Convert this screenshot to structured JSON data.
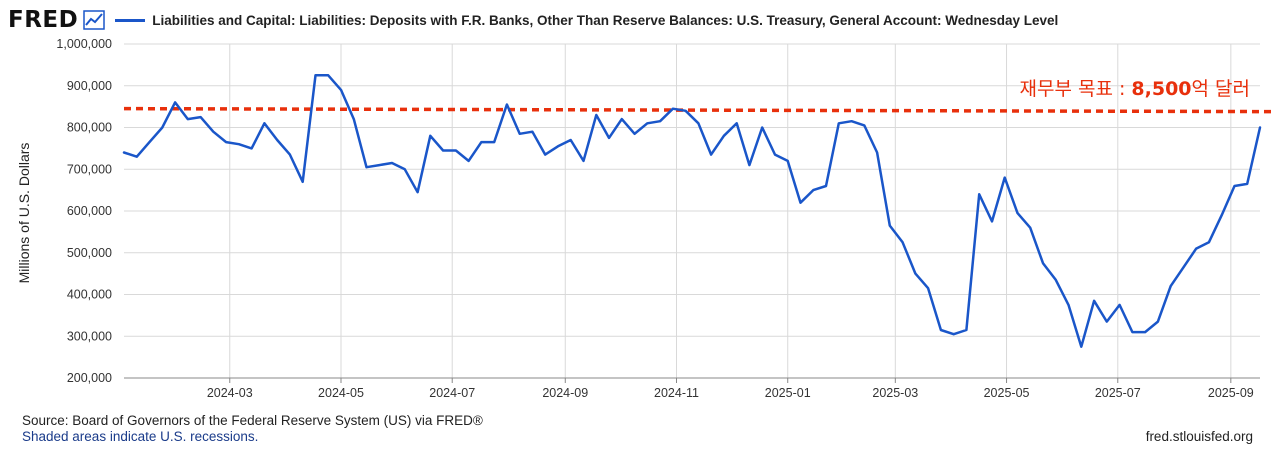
{
  "header": {
    "logo_text": "FRED",
    "legend_label": "Liabilities and Capital: Liabilities: Deposits with F.R. Banks, Other Than Reserve Balances: U.S. Treasury, General Account: Wednesday Level",
    "series_color": "#1a56c9"
  },
  "annotation": {
    "target_text": "재무부 목표 : ",
    "target_value": "8,500",
    "target_suffix": "억 달러",
    "color": "#e8300c"
  },
  "footer": {
    "source": "Source: Board of Governors of the Federal Reserve System (US) via FRED®",
    "recessions_note": "Shaded areas indicate U.S. recessions.",
    "site": "fred.stlouisfed.org"
  },
  "chart_data": {
    "type": "line",
    "title": "Liabilities and Capital: Liabilities: Deposits with F.R. Banks, Other Than Reserve Balances: U.S. Treasury, General Account: Wednesday Level",
    "xlabel": "",
    "ylabel": "Millions of U.S. Dollars",
    "ylim": [
      200000,
      1000000
    ],
    "xlim": [
      "2024-01-03",
      "2025-09-17"
    ],
    "y_ticks": [
      200000,
      300000,
      400000,
      500000,
      600000,
      700000,
      800000,
      900000,
      1000000
    ],
    "y_tick_labels": [
      "200,000",
      "300,000",
      "400,000",
      "500,000",
      "600,000",
      "700,000",
      "800,000",
      "900,000",
      "1,000,000"
    ],
    "x_ticks": [
      "2024-03-01",
      "2024-05-01",
      "2024-07-01",
      "2024-09-01",
      "2024-11-01",
      "2025-01-01",
      "2025-03-01",
      "2025-05-01",
      "2025-07-01",
      "2025-09-01"
    ],
    "x_tick_labels": [
      "2024-03",
      "2024-05",
      "2024-07",
      "2024-09",
      "2024-11",
      "2025-01",
      "2025-03",
      "2025-05",
      "2025-07",
      "2025-09"
    ],
    "grid": true,
    "reference_line": {
      "value": 850000,
      "style": "dashed",
      "color": "#e8300c"
    },
    "series": [
      {
        "name": "Liabilities and Capital: Liabilities: Deposits with F.R. Banks, Other Than Reserve Balances: U.S. Treasury, General Account: Wednesday Level",
        "color": "#1a56c9",
        "x": [
          "2024-01-03",
          "2024-01-10",
          "2024-01-17",
          "2024-01-24",
          "2024-01-31",
          "2024-02-07",
          "2024-02-14",
          "2024-02-21",
          "2024-02-28",
          "2024-03-06",
          "2024-03-13",
          "2024-03-20",
          "2024-03-27",
          "2024-04-03",
          "2024-04-10",
          "2024-04-17",
          "2024-04-24",
          "2024-05-01",
          "2024-05-08",
          "2024-05-15",
          "2024-05-22",
          "2024-05-29",
          "2024-06-05",
          "2024-06-12",
          "2024-06-19",
          "2024-06-26",
          "2024-07-03",
          "2024-07-10",
          "2024-07-17",
          "2024-07-24",
          "2024-07-31",
          "2024-08-07",
          "2024-08-14",
          "2024-08-21",
          "2024-08-28",
          "2024-09-04",
          "2024-09-11",
          "2024-09-18",
          "2024-09-25",
          "2024-10-02",
          "2024-10-09",
          "2024-10-16",
          "2024-10-23",
          "2024-10-30",
          "2024-11-06",
          "2024-11-13",
          "2024-11-20",
          "2024-11-27",
          "2024-12-04",
          "2024-12-11",
          "2024-12-18",
          "2024-12-25",
          "2025-01-01",
          "2025-01-08",
          "2025-01-15",
          "2025-01-22",
          "2025-01-29",
          "2025-02-05",
          "2025-02-12",
          "2025-02-19",
          "2025-02-26",
          "2025-03-05",
          "2025-03-12",
          "2025-03-19",
          "2025-03-26",
          "2025-04-02",
          "2025-04-09",
          "2025-04-16",
          "2025-04-23",
          "2025-04-30",
          "2025-05-07",
          "2025-05-14",
          "2025-05-21",
          "2025-05-28",
          "2025-06-04",
          "2025-06-11",
          "2025-06-18",
          "2025-06-25",
          "2025-07-02",
          "2025-07-09",
          "2025-07-16",
          "2025-07-23",
          "2025-07-30",
          "2025-08-06",
          "2025-08-13",
          "2025-08-20",
          "2025-08-27",
          "2025-09-03",
          "2025-09-10",
          "2025-09-17"
        ],
        "values": [
          740000,
          730000,
          765000,
          800000,
          860000,
          820000,
          825000,
          790000,
          765000,
          760000,
          750000,
          810000,
          770000,
          735000,
          670000,
          925000,
          925000,
          890000,
          820000,
          705000,
          710000,
          715000,
          700000,
          645000,
          780000,
          745000,
          745000,
          720000,
          765000,
          765000,
          855000,
          785000,
          790000,
          735000,
          755000,
          770000,
          720000,
          830000,
          775000,
          820000,
          785000,
          810000,
          815000,
          845000,
          840000,
          810000,
          735000,
          780000,
          810000,
          710000,
          800000,
          735000,
          720000,
          620000,
          650000,
          660000,
          810000,
          815000,
          805000,
          740000,
          565000,
          525000,
          450000,
          415000,
          315000,
          305000,
          315000,
          640000,
          575000,
          680000,
          595000,
          560000,
          475000,
          435000,
          375000,
          275000,
          385000,
          335000,
          375000,
          310000,
          310000,
          335000,
          420000,
          465000,
          510000,
          525000,
          590000,
          660000,
          665000,
          800000
        ]
      }
    ]
  }
}
